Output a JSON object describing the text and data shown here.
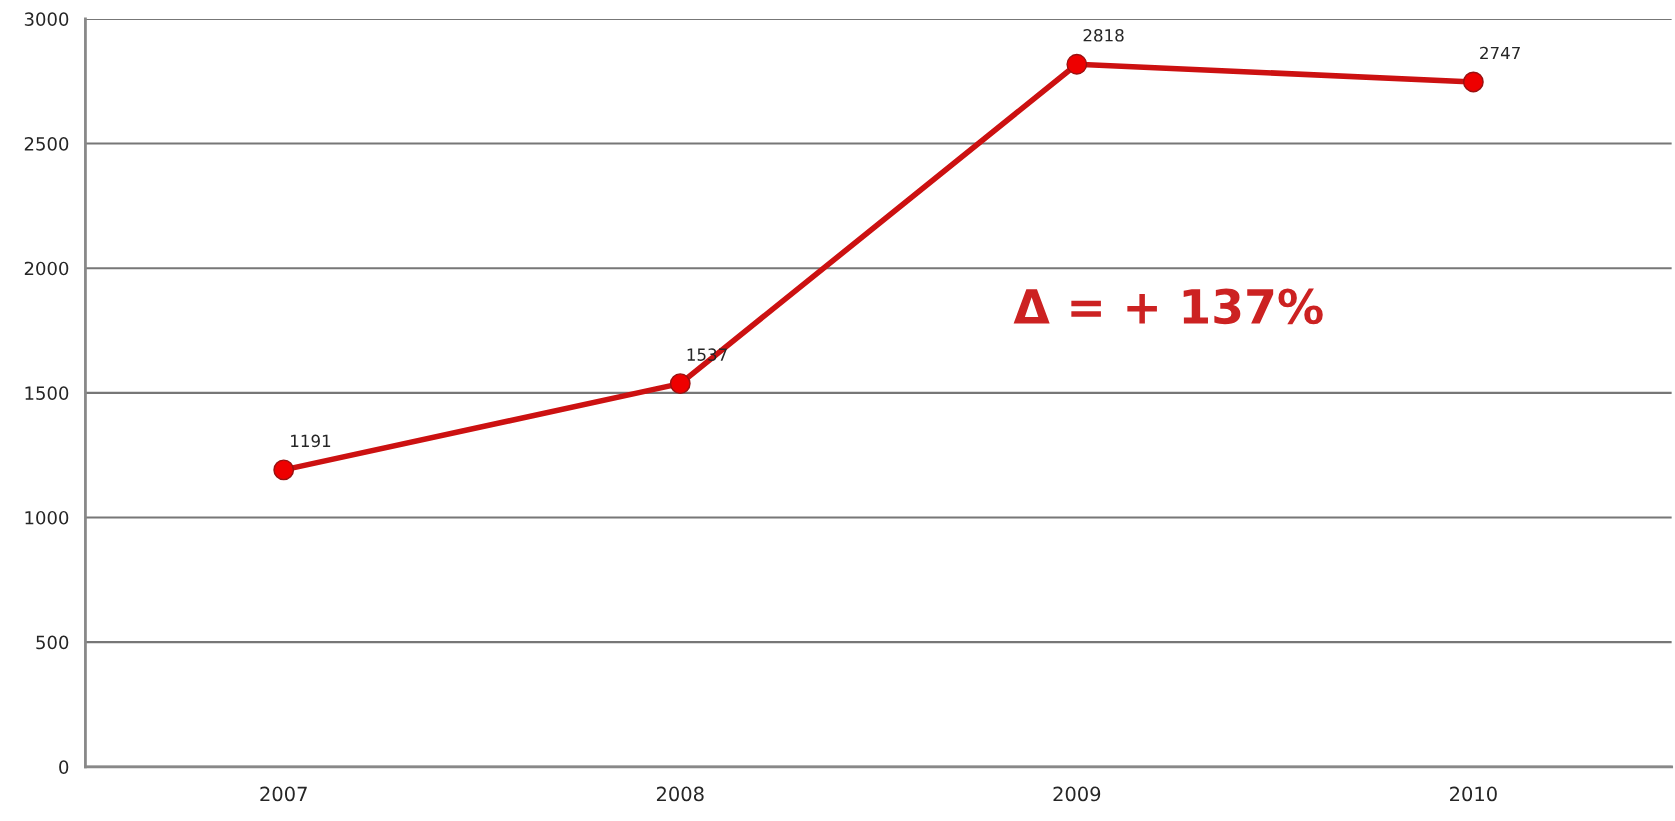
{
  "chart_data": {
    "type": "line",
    "categories": [
      "2007",
      "2008",
      "2009",
      "2010"
    ],
    "series": [
      {
        "color": "#cc1111",
        "values": [
          1191,
          1537,
          2818,
          2747
        ]
      }
    ],
    "ylim": [
      0,
      3000
    ],
    "yticks": [
      0,
      500,
      1000,
      1500,
      2000,
      2500,
      3000
    ],
    "grid": "y",
    "marker": "circle",
    "line_style": "solid",
    "data_labels": true,
    "annotations": [
      "Δ = + 137%"
    ]
  }
}
